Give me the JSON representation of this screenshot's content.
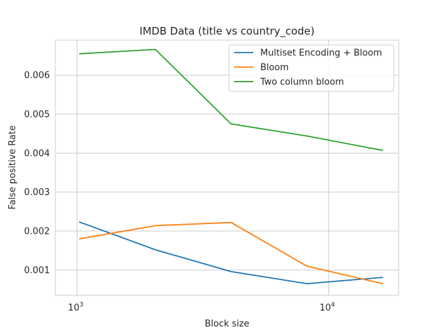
{
  "chart_data": {
    "type": "line",
    "title": "IMDB Data (title vs country_code)",
    "xlabel": "Block size",
    "ylabel": "False positive Rate",
    "xscale": "log",
    "xlim": [
      820,
      19000
    ],
    "ylim": [
      0.00035,
      0.0069
    ],
    "grid": true,
    "legend_position": "top-right",
    "x": [
      1024,
      2048,
      4096,
      8192,
      16384
    ],
    "x_ticks": [
      {
        "value": 1000,
        "base": "10",
        "exp": "3"
      },
      {
        "value": 10000,
        "base": "10",
        "exp": "4"
      }
    ],
    "y_ticks": [
      {
        "value": 0.001,
        "label": "0.001"
      },
      {
        "value": 0.002,
        "label": "0.002"
      },
      {
        "value": 0.003,
        "label": "0.003"
      },
      {
        "value": 0.004,
        "label": "0.004"
      },
      {
        "value": 0.005,
        "label": "0.005"
      },
      {
        "value": 0.006,
        "label": "0.006"
      }
    ],
    "series": [
      {
        "name": "Multiset Encoding + Bloom",
        "color": "#1f77b4",
        "values": [
          0.00223,
          0.00152,
          0.00096,
          0.00065,
          0.00081
        ]
      },
      {
        "name": "Bloom",
        "color": "#ff7f0e",
        "values": [
          0.0018,
          0.00214,
          0.00222,
          0.0011,
          0.00065
        ]
      },
      {
        "name": "Two column bloom",
        "color": "#2ca02c",
        "values": [
          0.00655,
          0.00666,
          0.00475,
          0.00444,
          0.00407
        ]
      }
    ]
  }
}
